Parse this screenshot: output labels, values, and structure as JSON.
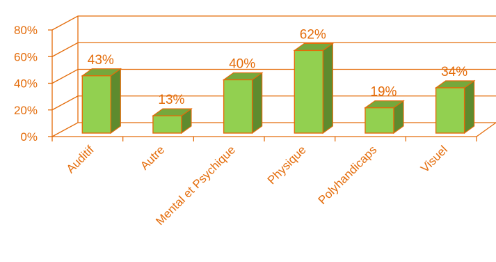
{
  "chart_data": {
    "type": "bar",
    "title": "",
    "xlabel": "",
    "ylabel": "",
    "categories": [
      "Auditif",
      "Autre",
      "Mental et Psychique",
      "Physique",
      "Polyhandicaps",
      "Visuel"
    ],
    "values": [
      43,
      13,
      40,
      62,
      19,
      34
    ],
    "data_labels": [
      "43%",
      "13%",
      "40%",
      "62%",
      "19%",
      "34%"
    ],
    "y_ticks": [
      "0%",
      "20%",
      "40%",
      "60%",
      "80%"
    ],
    "ylim": [
      0,
      80
    ],
    "grid": true,
    "three_d": true,
    "legend": "none",
    "colors": {
      "bar_front": "#92D050",
      "bar_side": "#5E8B2E",
      "bar_top": "#76A83C",
      "bar_outline": "#E46C0A",
      "grid": "#E46C0A",
      "text": "#E46C0A"
    }
  }
}
